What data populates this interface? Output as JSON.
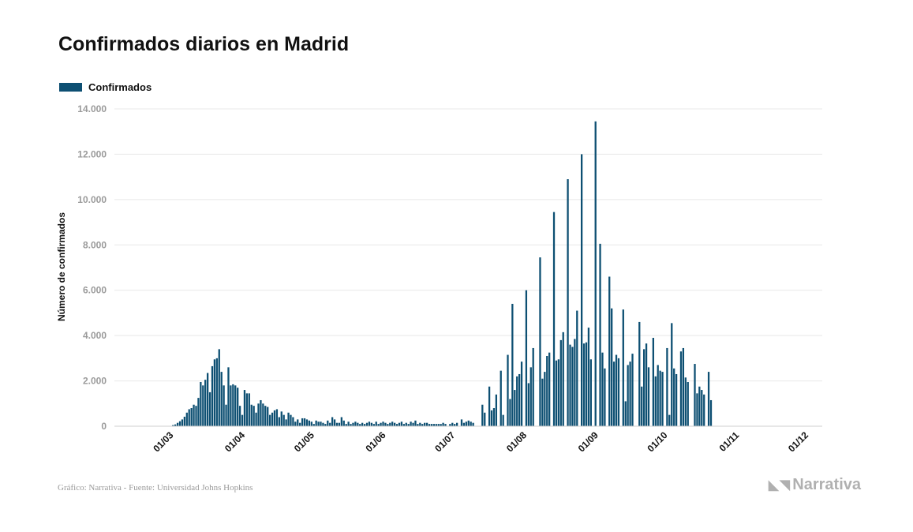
{
  "header": {
    "title": "Confirmados diarios en Madrid"
  },
  "legend": {
    "label": "Confirmados",
    "color": "#0d4f72"
  },
  "footer": {
    "credit": "Gráfico: Narrativa - Fuente: Universidad Johns Hopkins",
    "brand": "Narrativa",
    "brand_icon": "narrativa-logo-icon"
  },
  "chart_data": {
    "type": "bar",
    "title": "Confirmados diarios en Madrid",
    "xlabel": "",
    "ylabel": "Número de confirmados",
    "ylim": [
      0,
      14000
    ],
    "yticks": [
      0,
      2000,
      4000,
      6000,
      8000,
      10000,
      12000,
      14000
    ],
    "ytick_labels": [
      "0",
      "2.000",
      "4.000",
      "6.000",
      "8.000",
      "10.000",
      "12.000",
      "14.000"
    ],
    "xtick_labels": [
      "01/03",
      "01/04",
      "01/05",
      "01/06",
      "01/07",
      "01/08",
      "01/09",
      "01/10",
      "01/11",
      "01/12"
    ],
    "x_start": "2020-02-14",
    "grid": true,
    "legend_position": "top-left",
    "color": "#0d4f72",
    "series": [
      {
        "name": "Confirmados",
        "values": [
          0,
          0,
          0,
          0,
          0,
          0,
          0,
          0,
          0,
          0,
          0,
          0,
          0,
          0,
          0,
          0,
          0,
          50,
          80,
          150,
          220,
          300,
          420,
          600,
          750,
          800,
          950,
          900,
          1250,
          1950,
          1800,
          2050,
          2350,
          1500,
          2650,
          2950,
          3000,
          3400,
          2400,
          1800,
          950,
          2600,
          1800,
          1850,
          1800,
          1700,
          900,
          500,
          1600,
          1450,
          1450,
          950,
          900,
          600,
          1000,
          1150,
          1000,
          900,
          850,
          500,
          600,
          700,
          750,
          400,
          650,
          500,
          300,
          600,
          500,
          400,
          200,
          300,
          150,
          350,
          350,
          300,
          250,
          200,
          100,
          250,
          200,
          200,
          150,
          100,
          250,
          150,
          400,
          300,
          150,
          150,
          400,
          250,
          100,
          200,
          100,
          150,
          200,
          150,
          100,
          150,
          100,
          150,
          200,
          150,
          100,
          200,
          100,
          150,
          200,
          150,
          100,
          150,
          200,
          150,
          100,
          150,
          200,
          100,
          150,
          100,
          200,
          150,
          250,
          100,
          150,
          100,
          150,
          150,
          100,
          100,
          100,
          100,
          100,
          100,
          150,
          100,
          0,
          100,
          150,
          100,
          150,
          0,
          300,
          150,
          200,
          250,
          200,
          150,
          0,
          0,
          0,
          950,
          600,
          0,
          1750,
          700,
          800,
          1400,
          0,
          2450,
          500,
          0,
          3150,
          1200,
          5400,
          1600,
          2200,
          2300,
          2850,
          0,
          6000,
          1900,
          2600,
          3450,
          0,
          0,
          7450,
          2100,
          2400,
          3100,
          3250,
          0,
          9450,
          2900,
          2950,
          3800,
          4150,
          0,
          10900,
          3600,
          3500,
          3850,
          5100,
          0,
          12000,
          3650,
          3700,
          4350,
          2950,
          0,
          13450,
          0,
          8050,
          3250,
          2550,
          0,
          6600,
          5200,
          2850,
          3150,
          3000,
          0,
          5150,
          1100,
          2700,
          2850,
          3200,
          0,
          0,
          4600,
          1750,
          3400,
          3650,
          2600,
          0,
          3900,
          2200,
          2700,
          2450,
          2400,
          0,
          3450,
          500,
          4550,
          2550,
          2300,
          0,
          3300,
          3450,
          2150,
          1950,
          0,
          0,
          2750,
          1450,
          1750,
          1600,
          1400,
          0,
          2400,
          1150
        ]
      }
    ]
  }
}
